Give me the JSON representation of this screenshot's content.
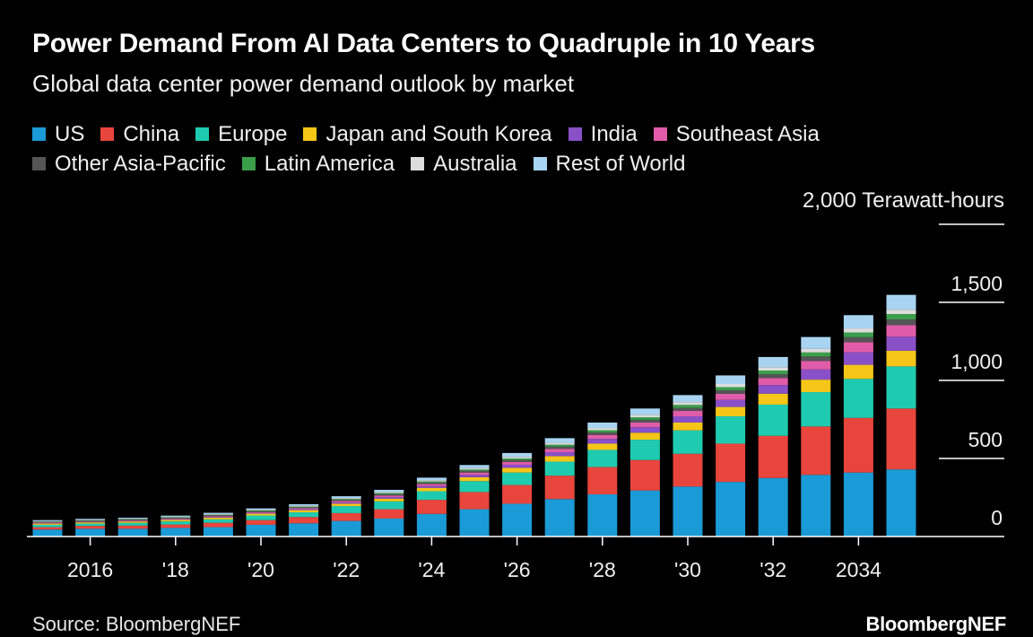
{
  "header": {
    "title": "Power Demand From AI Data Centers to Quadruple in 10 Years",
    "subtitle": "Global data center power demand outlook by market"
  },
  "footer": {
    "source": "Source: BloombergNEF",
    "brand": "BloombergNEF"
  },
  "chart_data": {
    "type": "bar",
    "stacked": true,
    "title": "Power Demand From AI Data Centers to Quadruple in 10 Years",
    "subtitle": "Global data center power demand outlook by market",
    "unit_label": "2,000 Terawatt-hours",
    "ylim": [
      0,
      2000
    ],
    "y_ticks": [
      0,
      500,
      1000,
      1500,
      2000
    ],
    "y_tick_labels": [
      "0",
      "500",
      "1,000",
      "1,500",
      "2,000 Terawatt-hours"
    ],
    "x_tick_labels": [
      {
        "year": 2016,
        "label": "2016"
      },
      {
        "year": 2018,
        "label": "'18"
      },
      {
        "year": 2020,
        "label": "'20"
      },
      {
        "year": 2022,
        "label": "'22"
      },
      {
        "year": 2024,
        "label": "'24"
      },
      {
        "year": 2026,
        "label": "'26"
      },
      {
        "year": 2028,
        "label": "'28"
      },
      {
        "year": 2030,
        "label": "'30"
      },
      {
        "year": 2032,
        "label": "'32"
      },
      {
        "year": 2034,
        "label": "2034"
      }
    ],
    "grid": false,
    "legend_position": "top",
    "categories": [
      2015,
      2016,
      2017,
      2018,
      2019,
      2020,
      2021,
      2022,
      2023,
      2024,
      2025,
      2026,
      2027,
      2028,
      2029,
      2030,
      2031,
      2032,
      2033,
      2034,
      2035
    ],
    "series": [
      {
        "name": "US",
        "color": "#1a9ad6",
        "values": [
          45,
          50,
          50,
          55,
          60,
          75,
          85,
          100,
          115,
          145,
          175,
          210,
          240,
          270,
          295,
          320,
          350,
          375,
          395,
          410,
          430
        ]
      },
      {
        "name": "China",
        "color": "#e8453c",
        "values": [
          15,
          18,
          20,
          22,
          28,
          30,
          40,
          50,
          60,
          90,
          110,
          120,
          150,
          175,
          195,
          210,
          245,
          270,
          310,
          350,
          390
        ]
      },
      {
        "name": "Europe",
        "color": "#1fcbb0",
        "values": [
          15,
          15,
          18,
          20,
          22,
          30,
          30,
          45,
          50,
          55,
          70,
          80,
          90,
          110,
          130,
          150,
          175,
          200,
          220,
          250,
          270
        ]
      },
      {
        "name": "Japan and South Korea",
        "color": "#f5c518",
        "values": [
          8,
          8,
          9,
          10,
          11,
          12,
          14,
          16,
          18,
          22,
          25,
          30,
          35,
          40,
          45,
          50,
          60,
          70,
          80,
          90,
          100
        ]
      },
      {
        "name": "India",
        "color": "#8a50c8",
        "values": [
          3,
          3,
          3,
          4,
          5,
          5,
          6,
          8,
          10,
          12,
          15,
          20,
          25,
          30,
          35,
          40,
          45,
          55,
          65,
          80,
          90
        ]
      },
      {
        "name": "Southeast Asia",
        "color": "#e05ca8",
        "values": [
          3,
          3,
          4,
          4,
          5,
          5,
          6,
          8,
          10,
          12,
          15,
          18,
          22,
          26,
          30,
          35,
          40,
          45,
          55,
          65,
          75
        ]
      },
      {
        "name": "Other Asia-Pacific",
        "color": "#555555",
        "values": [
          4,
          4,
          4,
          5,
          5,
          5,
          6,
          7,
          8,
          9,
          10,
          12,
          14,
          16,
          18,
          20,
          22,
          25,
          28,
          32,
          36
        ]
      },
      {
        "name": "Latin America",
        "color": "#3a9e4a",
        "values": [
          3,
          3,
          3,
          4,
          4,
          5,
          5,
          6,
          7,
          8,
          9,
          10,
          12,
          14,
          16,
          18,
          20,
          23,
          26,
          30,
          34
        ]
      },
      {
        "name": "Australia",
        "color": "#dcdcdc",
        "values": [
          3,
          3,
          3,
          3,
          4,
          4,
          5,
          6,
          7,
          8,
          9,
          10,
          12,
          14,
          16,
          18,
          20,
          22,
          24,
          26,
          28
        ]
      },
      {
        "name": "Rest of World",
        "color": "#a8d4f2",
        "values": [
          6,
          6,
          6,
          7,
          8,
          9,
          10,
          12,
          14,
          16,
          20,
          25,
          30,
          35,
          40,
          45,
          55,
          65,
          75,
          85,
          95
        ]
      }
    ]
  }
}
